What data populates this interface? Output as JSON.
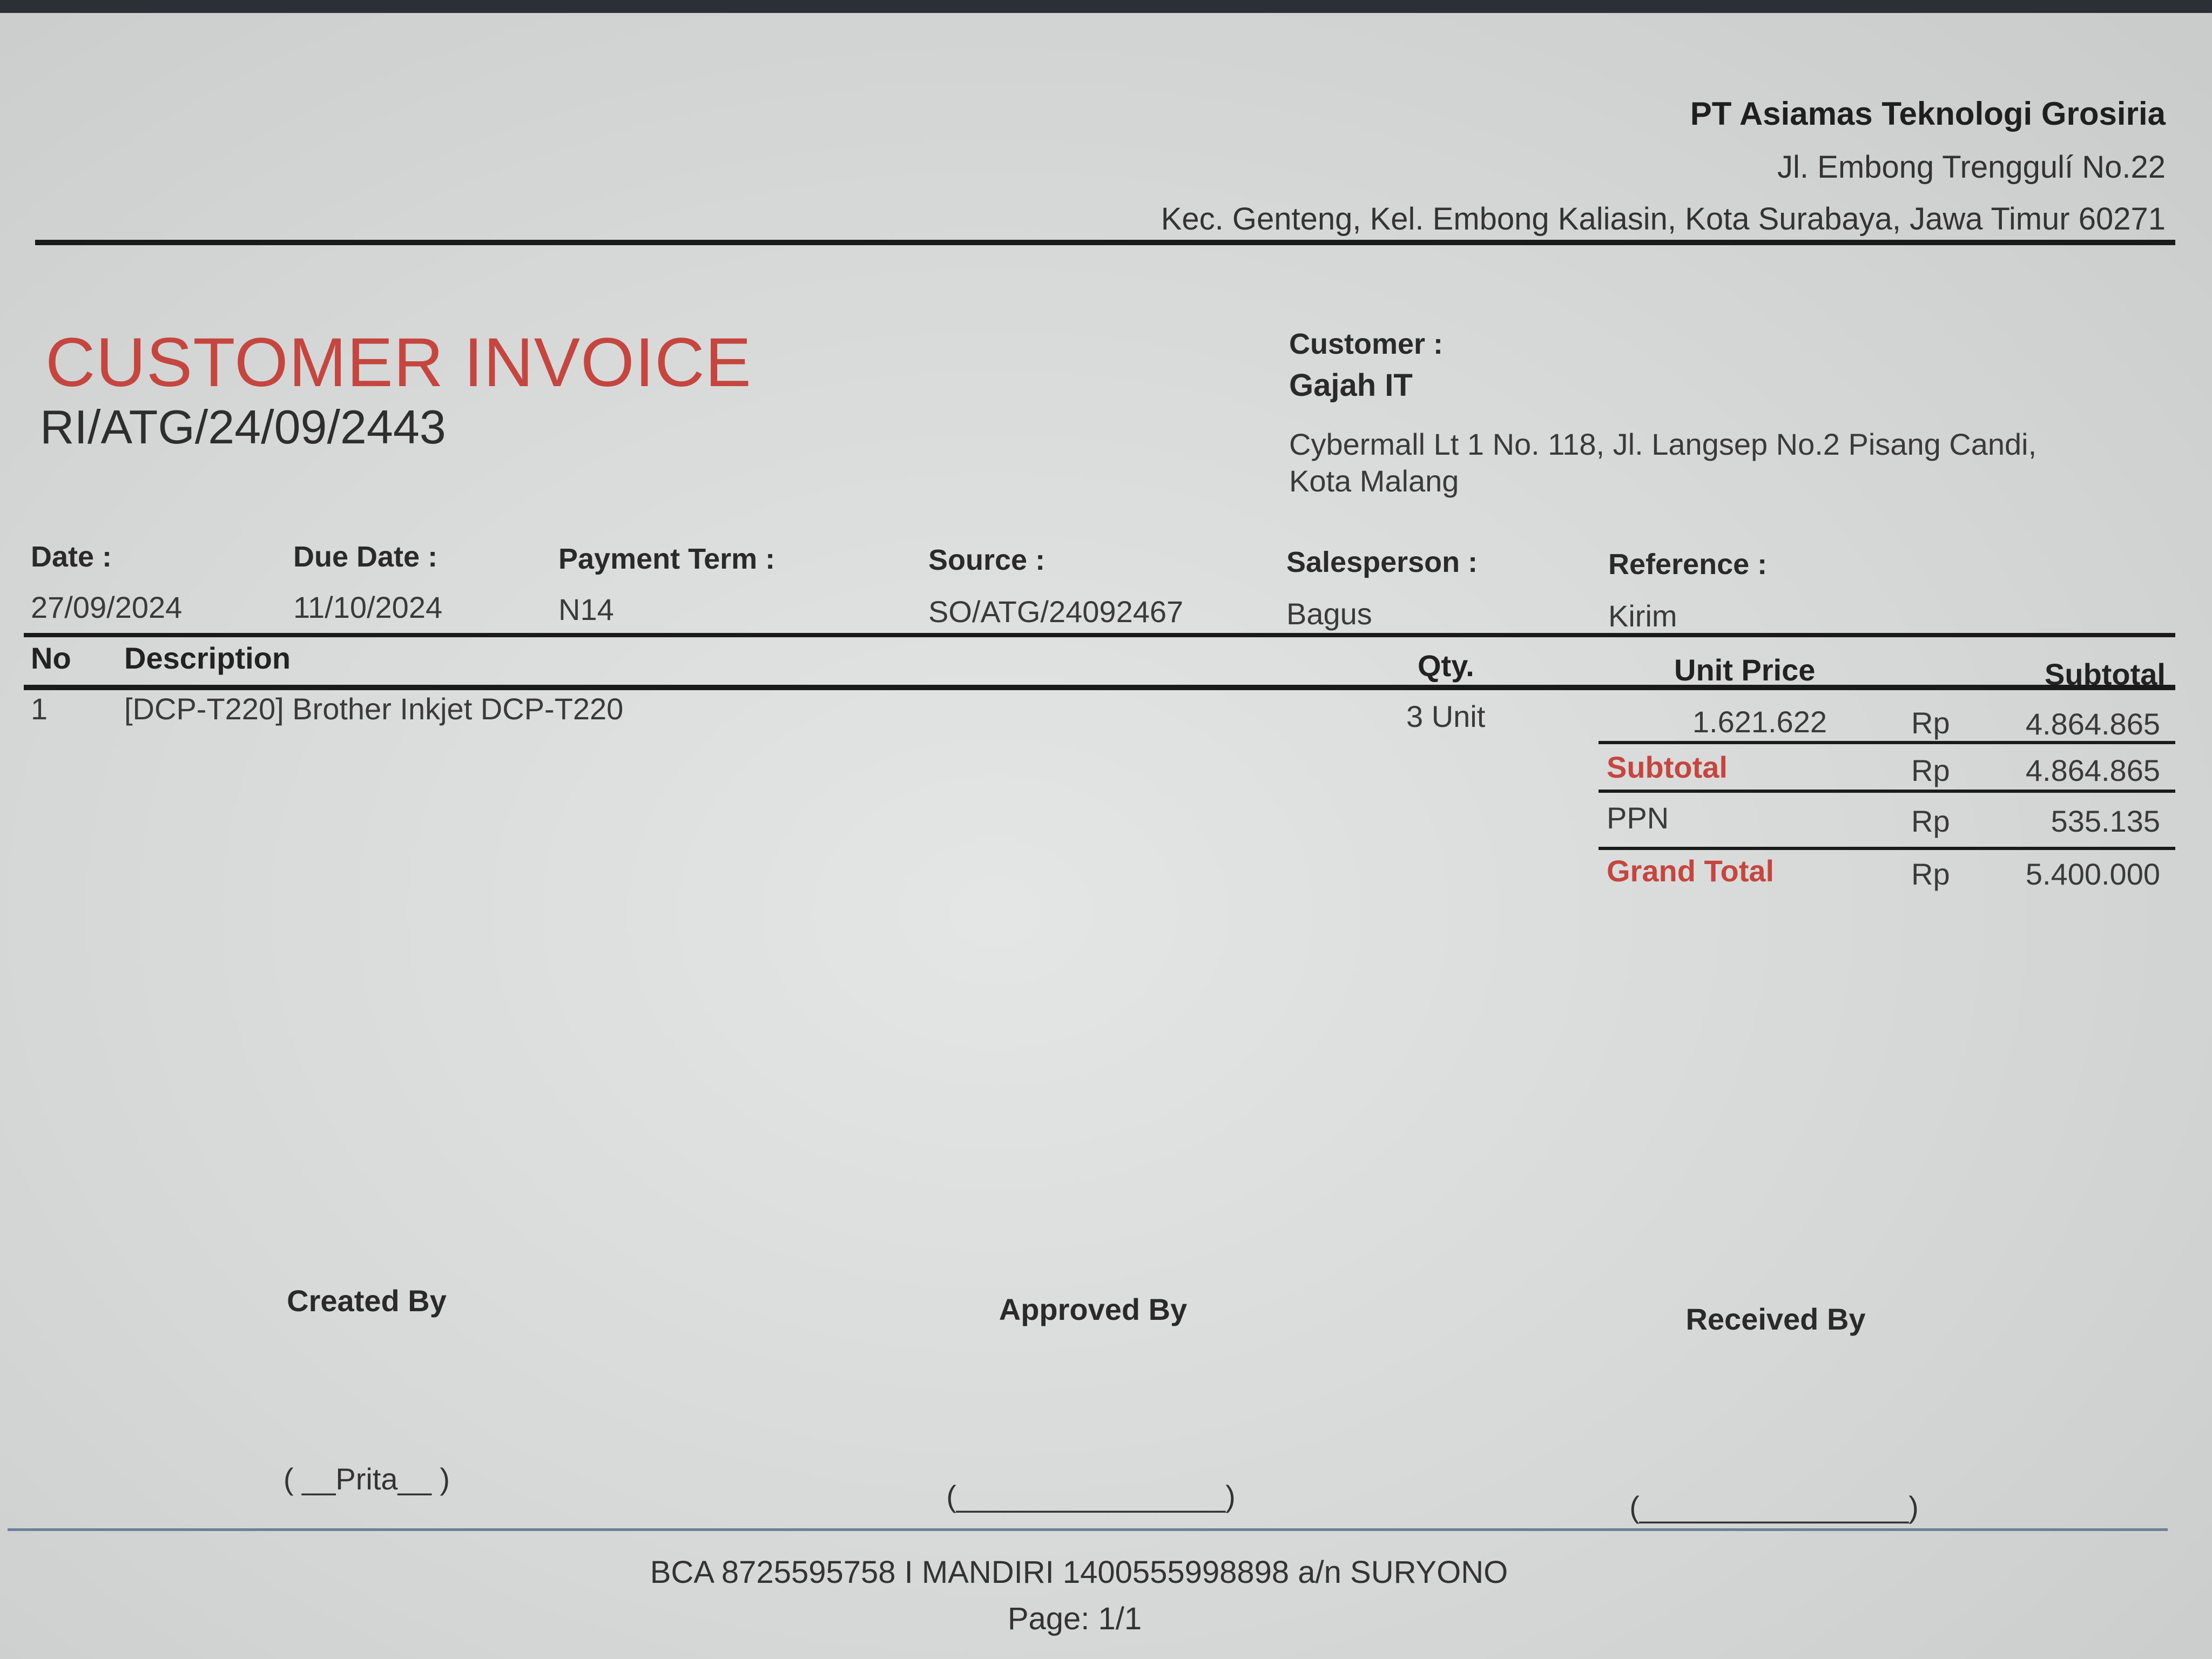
{
  "company": {
    "name": "PT Asiamas Teknologi Grosiria",
    "address_line1": "Jl. Embong Trenggulí No.22",
    "address_line2": "Kec. Genteng, Kel. Embong Kaliasin, Kota Surabaya, Jawa Timur 60271"
  },
  "invoice": {
    "title": "CUSTOMER INVOICE",
    "number": "RI/ATG/24/09/2443"
  },
  "customer": {
    "label": "Customer :",
    "name": "Gajah IT",
    "address_line1": "Cybermall Lt 1 No. 118, Jl. Langsep No.2 Pisang Candi,",
    "address_line2": "Kota Malang"
  },
  "fields": [
    {
      "label": "Date :",
      "value": "27/09/2024"
    },
    {
      "label": "Due Date :",
      "value": "11/10/2024"
    },
    {
      "label": "Payment Term :",
      "value": "N14"
    },
    {
      "label": "Source :",
      "value": "SO/ATG/24092467"
    },
    {
      "label": "Salesperson :",
      "value": "Bagus"
    },
    {
      "label": "Reference :",
      "value": "Kirim"
    }
  ],
  "table": {
    "headers": {
      "no": "No",
      "description": "Description",
      "qty": "Qty.",
      "unit_price": "Unit Price",
      "subtotal": "Subtotal"
    },
    "rows": [
      {
        "no": "1",
        "description": "[DCP-T220] Brother Inkjet DCP-T220",
        "qty": "3 Unit",
        "unit_price": "1.621.622",
        "currency": "Rp",
        "subtotal": "4.864.865"
      }
    ]
  },
  "totals": {
    "subtotal": {
      "label": "Subtotal",
      "currency": "Rp",
      "value": "4.864.865"
    },
    "tax": {
      "label": "PPN",
      "currency": "Rp",
      "value": "535.135"
    },
    "grand_total": {
      "label": "Grand Total",
      "currency": "Rp",
      "value": "5.400.000"
    }
  },
  "signatures": {
    "created_by": {
      "label": "Created By",
      "name": "( __Prita__ )"
    },
    "approved_by": {
      "label": "Approved By",
      "name": "(________________)"
    },
    "received_by": {
      "label": "Received By",
      "name": "(________________)"
    }
  },
  "footer": {
    "bank_info": "BCA 8725595758 I MANDIRI 1400555998898 a/n SURYONO",
    "page": "Page: 1/1"
  },
  "colors": {
    "accent": "#c4463e",
    "text": "#2a2a2a",
    "footer_rule": "#6f7f96"
  }
}
